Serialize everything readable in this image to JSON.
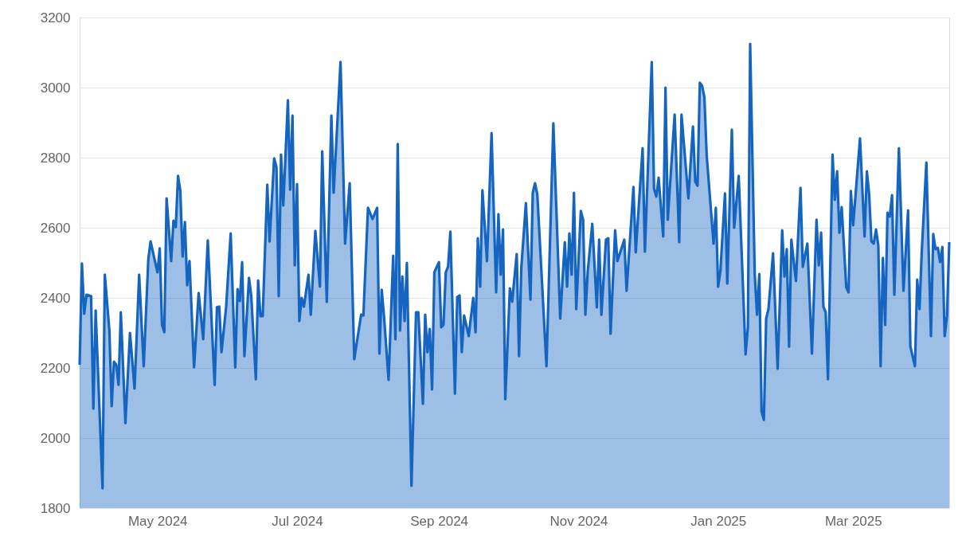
{
  "chart_data": {
    "type": "area",
    "xlim": [
      "2024-03-28",
      "2025-04-12"
    ],
    "ylim": [
      1800,
      3200
    ],
    "yticks": [
      1800,
      2000,
      2200,
      2400,
      2600,
      2800,
      3000,
      3200
    ],
    "xticks": [
      {
        "value": "2024-05-01",
        "label": "May 2024"
      },
      {
        "value": "2024-07-01",
        "label": "Jul 2024"
      },
      {
        "value": "2024-09-01",
        "label": "Sep 2024"
      },
      {
        "value": "2024-11-01",
        "label": "Nov 2024"
      },
      {
        "value": "2025-01-01",
        "label": "Jan 2025"
      },
      {
        "value": "2025-03-01",
        "label": "Mar 2025"
      }
    ],
    "grid": "y",
    "marker": "none",
    "line_style": "solid",
    "series": [
      {
        "color": "#1565c0",
        "x": [
          "2024-03-28",
          "2024-03-29",
          "2024-03-30",
          "2024-03-31",
          "2024-04-02",
          "2024-04-03",
          "2024-04-04",
          "2024-04-07",
          "2024-04-08",
          "2024-04-10",
          "2024-04-11",
          "2024-04-12",
          "2024-04-13",
          "2024-04-14",
          "2024-04-15",
          "2024-04-17",
          "2024-04-19",
          "2024-04-21",
          "2024-04-23",
          "2024-04-25",
          "2024-04-27",
          "2024-04-28",
          "2024-05-01",
          "2024-05-02",
          "2024-05-03",
          "2024-05-04",
          "2024-05-05",
          "2024-05-07",
          "2024-05-08",
          "2024-05-09",
          "2024-05-10",
          "2024-05-11",
          "2024-05-12",
          "2024-05-13",
          "2024-05-14",
          "2024-05-15",
          "2024-05-17",
          "2024-05-19",
          "2024-05-21",
          "2024-05-23",
          "2024-05-26",
          "2024-05-27",
          "2024-05-28",
          "2024-05-29",
          "2024-05-31",
          "2024-06-02",
          "2024-06-04",
          "2024-06-05",
          "2024-06-06",
          "2024-06-07",
          "2024-06-08",
          "2024-06-10",
          "2024-06-11",
          "2024-06-13",
          "2024-06-14",
          "2024-06-15",
          "2024-06-16",
          "2024-06-18",
          "2024-06-19",
          "2024-06-21",
          "2024-06-22",
          "2024-06-23",
          "2024-06-24",
          "2024-06-25",
          "2024-06-27",
          "2024-06-28",
          "2024-06-29",
          "2024-06-30",
          "2024-07-01",
          "2024-07-02",
          "2024-07-03",
          "2024-07-04",
          "2024-07-06",
          "2024-07-07",
          "2024-07-09",
          "2024-07-11",
          "2024-07-12",
          "2024-07-14",
          "2024-07-16",
          "2024-07-17",
          "2024-07-20",
          "2024-07-22",
          "2024-07-24",
          "2024-07-26",
          "2024-07-29",
          "2024-07-30",
          "2024-08-01",
          "2024-08-03",
          "2024-08-05",
          "2024-08-06",
          "2024-08-07",
          "2024-08-08",
          "2024-08-10",
          "2024-08-12",
          "2024-08-13",
          "2024-08-14",
          "2024-08-15",
          "2024-08-16",
          "2024-08-17",
          "2024-08-18",
          "2024-08-20",
          "2024-08-22",
          "2024-08-23",
          "2024-08-25",
          "2024-08-26",
          "2024-08-27",
          "2024-08-28",
          "2024-08-29",
          "2024-08-30",
          "2024-09-01",
          "2024-09-02",
          "2024-09-03",
          "2024-09-04",
          "2024-09-05",
          "2024-09-06",
          "2024-09-08",
          "2024-09-09",
          "2024-09-10",
          "2024-09-11",
          "2024-09-12",
          "2024-09-14",
          "2024-09-16",
          "2024-09-17",
          "2024-09-18",
          "2024-09-19",
          "2024-09-20",
          "2024-09-22",
          "2024-09-24",
          "2024-09-26",
          "2024-09-27",
          "2024-09-28",
          "2024-09-29",
          "2024-09-30",
          "2024-10-02",
          "2024-10-03",
          "2024-10-05",
          "2024-10-06",
          "2024-10-07",
          "2024-10-09",
          "2024-10-11",
          "2024-10-12",
          "2024-10-13",
          "2024-10-14",
          "2024-10-18",
          "2024-10-21",
          "2024-10-24",
          "2024-10-26",
          "2024-10-27",
          "2024-10-28",
          "2024-10-29",
          "2024-10-30",
          "2024-10-31",
          "2024-11-02",
          "2024-11-03",
          "2024-11-04",
          "2024-11-05",
          "2024-11-07",
          "2024-11-09",
          "2024-11-10",
          "2024-11-11",
          "2024-11-13",
          "2024-11-14",
          "2024-11-15",
          "2024-11-17",
          "2024-11-18",
          "2024-11-21",
          "2024-11-22",
          "2024-11-25",
          "2024-11-26",
          "2024-11-29",
          "2024-11-30",
          "2024-12-03",
          "2024-12-04",
          "2024-12-05",
          "2024-12-06",
          "2024-12-08",
          "2024-12-09",
          "2024-12-10",
          "2024-12-13",
          "2024-12-15",
          "2024-12-16",
          "2024-12-19",
          "2024-12-21",
          "2024-12-22",
          "2024-12-23",
          "2024-12-24",
          "2024-12-25",
          "2024-12-26",
          "2024-12-27",
          "2024-12-30",
          "2024-12-31",
          "2025-01-01",
          "2025-01-02",
          "2025-01-04",
          "2025-01-05",
          "2025-01-07",
          "2025-01-08",
          "2025-01-10",
          "2025-01-13",
          "2025-01-14",
          "2025-01-15",
          "2025-01-17",
          "2025-01-18",
          "2025-01-19",
          "2025-01-20",
          "2025-01-21",
          "2025-01-22",
          "2025-01-23",
          "2025-01-25",
          "2025-01-27",
          "2025-01-29",
          "2025-01-30",
          "2025-01-31",
          "2025-02-01",
          "2025-02-02",
          "2025-02-04",
          "2025-02-06",
          "2025-02-07",
          "2025-02-09",
          "2025-02-11",
          "2025-02-13",
          "2025-02-14",
          "2025-02-15",
          "2025-02-16",
          "2025-02-17",
          "2025-02-18",
          "2025-02-20",
          "2025-02-21",
          "2025-02-22",
          "2025-02-23",
          "2025-02-24",
          "2025-02-26",
          "2025-02-27",
          "2025-02-28",
          "2025-03-01",
          "2025-03-04",
          "2025-03-06",
          "2025-03-07",
          "2025-03-08",
          "2025-03-09",
          "2025-03-10",
          "2025-03-11",
          "2025-03-12",
          "2025-03-13",
          "2025-03-14",
          "2025-03-15",
          "2025-03-16",
          "2025-03-17",
          "2025-03-18",
          "2025-03-19",
          "2025-03-21",
          "2025-03-23",
          "2025-03-25",
          "2025-03-26",
          "2025-03-28",
          "2025-03-29",
          "2025-03-30",
          "2025-03-31",
          "2025-04-02",
          "2025-04-04",
          "2025-04-05",
          "2025-04-06",
          "2025-04-07",
          "2025-04-08",
          "2025-04-09",
          "2025-04-10",
          "2025-04-11",
          "2025-04-12"
        ],
        "values": [
          2209,
          2498,
          2355,
          2409,
          2405,
          2084,
          2364,
          1857,
          2466,
          2307,
          2091,
          2218,
          2209,
          2152,
          2359,
          2043,
          2300,
          2141,
          2466,
          2205,
          2509,
          2561,
          2473,
          2541,
          2323,
          2302,
          2684,
          2505,
          2620,
          2602,
          2748,
          2705,
          2518,
          2616,
          2436,
          2505,
          2202,
          2414,
          2282,
          2564,
          2152,
          2373,
          2375,
          2245,
          2373,
          2584,
          2202,
          2425,
          2391,
          2502,
          2234,
          2457,
          2405,
          2168,
          2450,
          2348,
          2348,
          2723,
          2561,
          2798,
          2773,
          2405,
          2809,
          2664,
          2964,
          2709,
          2920,
          2493,
          2725,
          2334,
          2400,
          2375,
          2466,
          2352,
          2591,
          2432,
          2818,
          2389,
          2920,
          2700,
          3073,
          2555,
          2727,
          2225,
          2352,
          2350,
          2657,
          2625,
          2657,
          2241,
          2423,
          2348,
          2166,
          2520,
          2282,
          2839,
          2307,
          2461,
          2334,
          2500,
          1864,
          2359,
          2359,
          2098,
          2352,
          2245,
          2311,
          2139,
          2473,
          2502,
          2316,
          2323,
          2473,
          2489,
          2589,
          2127,
          2402,
          2407,
          2245,
          2350,
          2291,
          2400,
          2302,
          2570,
          2432,
          2707,
          2505,
          2870,
          2416,
          2639,
          2466,
          2595,
          2111,
          2427,
          2389,
          2525,
          2234,
          2486,
          2670,
          2395,
          2700,
          2727,
          2695,
          2205,
          2898,
          2341,
          2559,
          2432,
          2584,
          2466,
          2700,
          2368,
          2648,
          2623,
          2352,
          2473,
          2611,
          2373,
          2566,
          2352,
          2566,
          2570,
          2298,
          2593,
          2505,
          2566,
          2420,
          2716,
          2530,
          2827,
          2532,
          3073,
          2711,
          2689,
          2743,
          2575,
          3000,
          2623,
          2923,
          2559,
          2923,
          2684,
          2889,
          2732,
          2720,
          3014,
          3005,
          2973,
          2807,
          2555,
          2657,
          2432,
          2477,
          2698,
          2441,
          2880,
          2600,
          2748,
          2239,
          2316,
          3125,
          2468,
          2352,
          2468,
          2075,
          2052,
          2341,
          2368,
          2527,
          2198,
          2593,
          2461,
          2539,
          2261,
          2566,
          2448,
          2714,
          2489,
          2555,
          2241,
          2623,
          2493,
          2586,
          2375,
          2359,
          2168,
          2809,
          2680,
          2761,
          2586,
          2659,
          2430,
          2416,
          2705,
          2607,
          2855,
          2575,
          2761,
          2695,
          2561,
          2555,
          2595,
          2550,
          2205,
          2514,
          2323,
          2643,
          2632,
          2693,
          2409,
          2827,
          2420,
          2650,
          2261,
          2205,
          2452,
          2368,
          2534,
          2786,
          2291,
          2582,
          2539,
          2543,
          2502,
          2545,
          2291,
          2348,
          2559
        ]
      }
    ]
  }
}
